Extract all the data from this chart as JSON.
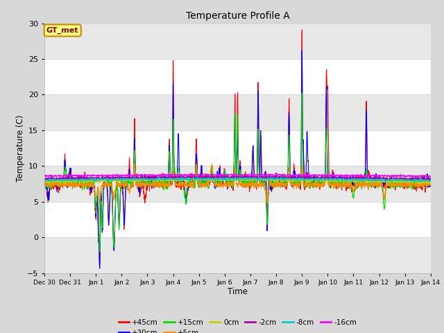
{
  "title": "Temperature Profile A",
  "xlabel": "Time",
  "ylabel": "Temperature (C)",
  "ylim": [
    -5,
    30
  ],
  "xlim_days": [
    0,
    15
  ],
  "fig_bg_color": "#d8d8d8",
  "plot_bg_color": "#ffffff",
  "band_colors": [
    "#e8e8e8",
    "#ffffff"
  ],
  "band_edges": [
    -5,
    0,
    5,
    10,
    15,
    20,
    25,
    30
  ],
  "grid_color": "#cccccc",
  "series": [
    {
      "label": "+45cm",
      "color": "#ff0000",
      "lw": 0.8
    },
    {
      "label": "+30cm",
      "color": "#0000ff",
      "lw": 0.8
    },
    {
      "label": "+15cm",
      "color": "#00dd00",
      "lw": 0.8
    },
    {
      "label": "+5cm",
      "color": "#ff8800",
      "lw": 0.8
    },
    {
      "label": "0cm",
      "color": "#cccc00",
      "lw": 0.8
    },
    {
      "label": "-2cm",
      "color": "#aa00aa",
      "lw": 0.8
    },
    {
      "label": "-8cm",
      "color": "#00cccc",
      "lw": 0.8
    },
    {
      "label": "-16cm",
      "color": "#ff00ff",
      "lw": 0.8
    }
  ],
  "annotation_text": "GT_met",
  "annotation_bg": "#ffff88",
  "annotation_border": "#cc8800",
  "tick_labels": [
    "Dec 30",
    "Dec 31",
    "Jan 1",
    "Jan 2",
    "Jan 3",
    "Jan 4",
    "Jan 5",
    "Jan 6",
    "Jan 7",
    "Jan 8",
    "Jan 9",
    "Jan 10",
    "Jan 11",
    "Jan 12",
    "Jan 13",
    "Jan 14"
  ],
  "n_points": 2000
}
